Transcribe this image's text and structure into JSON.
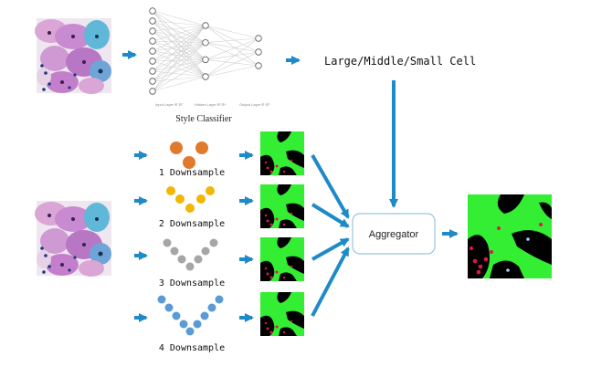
{
  "classifier": {
    "caption": "Style Classifier",
    "layer_labels": [
      "Input Layer ∈ ℝ⁷",
      "Hidden Layer ∈ ℝ⁴",
      "Output Layer ∈ ℝ³"
    ]
  },
  "cell_size_label": "Large/Middle/Small Cell",
  "downsample_labels": [
    "1 Downsample",
    "2 Downsample",
    "3 Downsample",
    "4 Downsample"
  ],
  "aggregator_label": "Aggregator",
  "colors": {
    "arrow": "#1e8ac7",
    "mask_green": "#33ee33",
    "mask_black": "#000000",
    "dot_orange": "#e07a2e",
    "dot_yellow": "#f2b705",
    "dot_gray": "#a6a6a6",
    "dot_blue": "#5b9bd5",
    "cell_dot": "#e0154f"
  },
  "icons": {
    "cytology_image": "cytology-image-icon",
    "segmentation_mask": "segmentation-mask-icon",
    "neural_network": "neural-network-icon"
  }
}
